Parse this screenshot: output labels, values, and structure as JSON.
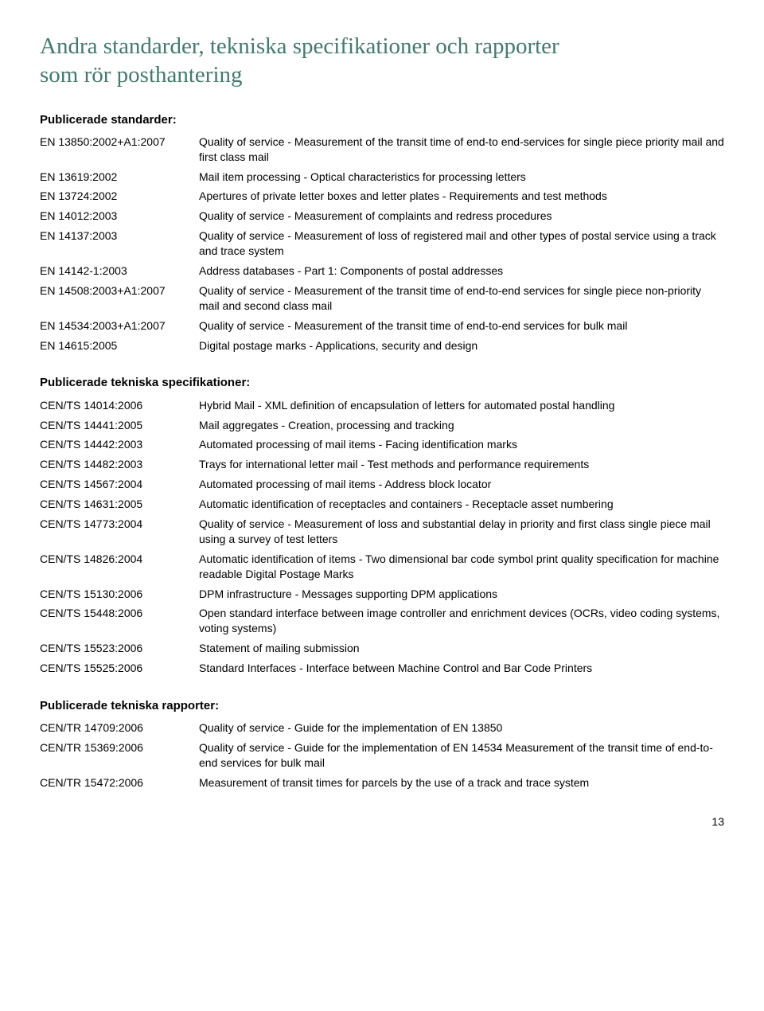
{
  "title_line1": "Andra standarder, tekniska specifikationer och rapporter",
  "title_line2": "som rör posthantering",
  "page_number": "13",
  "sections": [
    {
      "heading": "Publicerade standarder:",
      "items": [
        {
          "code": "EN 13850:2002+A1:2007",
          "desc": "Quality of service - Measurement of the transit time of end-to end-services for single piece priority mail and first class mail"
        },
        {
          "code": "EN 13619:2002",
          "desc": "Mail item processing - Optical characteristics for processing letters"
        },
        {
          "code": "EN 13724:2002",
          "desc": "Apertures of private letter boxes and letter plates - Requirements and test methods"
        },
        {
          "code": "EN 14012:2003",
          "desc": "Quality of service - Measurement of complaints and redress procedures"
        },
        {
          "code": "EN 14137:2003",
          "desc": "Quality of service - Measurement of loss of registered mail and other types of postal service using a track and trace system"
        },
        {
          "code": "EN 14142-1:2003",
          "desc": "Address databases - Part 1: Components of postal addresses"
        },
        {
          "code": "EN 14508:2003+A1:2007",
          "desc": "Quality of service - Measurement of the transit time of end-to-end services for single piece non-priority mail and second class mail"
        },
        {
          "code": "EN 14534:2003+A1:2007",
          "desc": "Quality of service - Measurement of the transit time of end-to-end services for bulk mail"
        },
        {
          "code": "EN 14615:2005",
          "desc": "Digital postage marks - Applications, security and design"
        }
      ]
    },
    {
      "heading": "Publicerade tekniska specifikationer:",
      "items": [
        {
          "code": "CEN/TS 14014:2006",
          "desc": "Hybrid Mail - XML definition of encapsulation of letters for automated postal handling"
        },
        {
          "code": "CEN/TS 14441:2005",
          "desc": "Mail aggregates - Creation, processing and tracking"
        },
        {
          "code": "CEN/TS 14442:2003",
          "desc": "Automated processing of mail items - Facing identification marks"
        },
        {
          "code": "CEN/TS 14482:2003",
          "desc": "Trays for international letter mail - Test methods and performance requirements"
        },
        {
          "code": "CEN/TS 14567:2004",
          "desc": "Automated processing of mail items - Address block locator"
        },
        {
          "code": "CEN/TS 14631:2005",
          "desc": "Automatic identification of receptacles and containers - Receptacle asset numbering"
        },
        {
          "code": "CEN/TS 14773:2004",
          "desc": "Quality of service - Measurement of loss and substantial delay in priority and first class single piece mail using a survey of test letters"
        },
        {
          "code": "CEN/TS 14826:2004",
          "desc": "Automatic identification of items - Two dimensional bar code symbol print quality specification for machine readable Digital Postage Marks"
        },
        {
          "code": "CEN/TS 15130:2006",
          "desc": "DPM infrastructure - Messages supporting DPM applications"
        },
        {
          "code": "CEN/TS 15448:2006",
          "desc": "Open standard interface between image controller and enrichment devices (OCRs, video coding systems, voting systems)"
        },
        {
          "code": "CEN/TS 15523:2006",
          "desc": "Statement of mailing submission"
        },
        {
          "code": "CEN/TS 15525:2006",
          "desc": "Standard Interfaces - Interface between Machine Control and Bar Code Printers"
        }
      ]
    },
    {
      "heading": "Publicerade tekniska rapporter:",
      "items": [
        {
          "code": "CEN/TR 14709:2006",
          "desc": "Quality of service - Guide for the implementation of EN 13850"
        },
        {
          "code": "CEN/TR 15369:2006",
          "desc": "Quality of service - Guide for the implementation of EN 14534 Measurement of the transit time of end-to-end services for bulk mail"
        },
        {
          "code": "CEN/TR 15472:2006",
          "desc": "Measurement of transit times for parcels by the use of a track and trace system"
        }
      ]
    }
  ]
}
